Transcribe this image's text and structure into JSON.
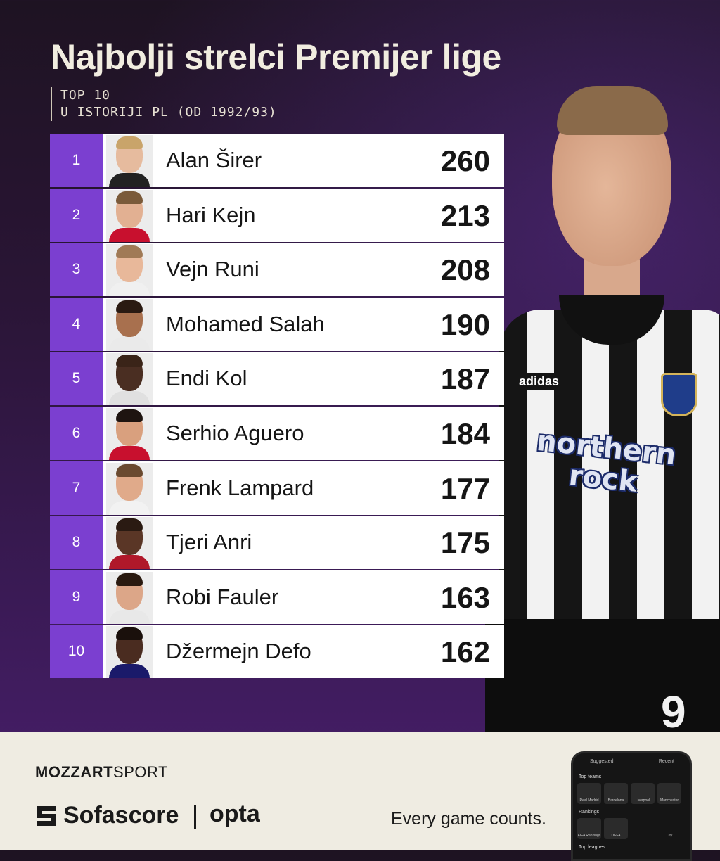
{
  "title": "Najbolji strelci Premijer lige",
  "subtitle": {
    "line1": "TOP 10",
    "line2": "U ISTORIJI PL (OD 1992/93)"
  },
  "colors": {
    "accent": "#7b3fd0",
    "background": "#2a1536",
    "row": "#ffffff",
    "footer": "#efece2"
  },
  "players": [
    {
      "rank": "1",
      "name": "Alan Širer",
      "goals": "260"
    },
    {
      "rank": "2",
      "name": "Hari Kejn",
      "goals": "213"
    },
    {
      "rank": "3",
      "name": "Vejn Runi",
      "goals": "208"
    },
    {
      "rank": "4",
      "name": "Mohamed Salah",
      "goals": "190"
    },
    {
      "rank": "5",
      "name": "Endi Kol",
      "goals": "187"
    },
    {
      "rank": "6",
      "name": "Serhio Aguero",
      "goals": "184"
    },
    {
      "rank": "7",
      "name": "Frenk Lampard",
      "goals": "177"
    },
    {
      "rank": "8",
      "name": "Tjeri Anri",
      "goals": "175"
    },
    {
      "rank": "9",
      "name": "Robi Fauler",
      "goals": "163"
    },
    {
      "rank": "10",
      "name": "Džermejn Defo",
      "goals": "162"
    }
  ],
  "hero": {
    "sponsor_line1": "northern",
    "sponsor_line2": "rock",
    "brand": "adidas",
    "number": "9"
  },
  "footer": {
    "mozzart_bold": "MOZZART",
    "mozzart_light": "SPORT",
    "sofascore": "Sofascore",
    "opta": "opta",
    "tagline": "Every game counts.",
    "phone": {
      "tab_suggested": "Suggested",
      "tab_recent": "Recent",
      "section_top_teams": "Top teams",
      "teams": [
        "Real Madrid",
        "Barcelona",
        "Liverpool",
        "Manchester City"
      ],
      "section_rankings": "Rankings",
      "rankings": [
        "FIFA Rankings",
        "UEFA Rankings"
      ],
      "section_top_leagues": "Top leagues"
    }
  }
}
